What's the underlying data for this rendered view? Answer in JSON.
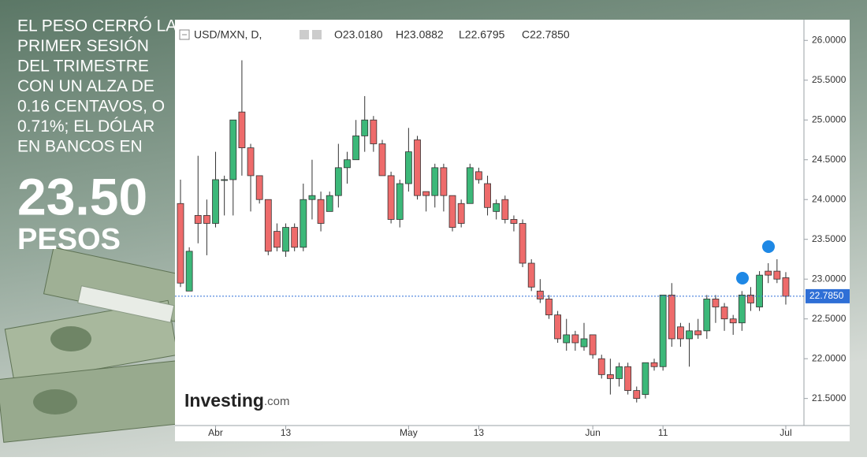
{
  "chart_data": {
    "type": "candlestick",
    "headline": [
      "EL PESO CERRÓ LA",
      "PRIMER SESIÓN",
      "DEL TRIMESTRE",
      "CON UN ALZA DE",
      "0.16 CENTAVOS, O",
      "0.71%; EL DÓLAR",
      "EN BANCOS EN"
    ],
    "big_number": "23.50",
    "big_unit": "PESOS",
    "symbol": "USD/MXN, D,",
    "header_values": [
      "O23.0180",
      "H23.0882",
      "L22.6795",
      "C22.7850"
    ],
    "logo": [
      "Investing",
      ".com"
    ],
    "categories": [
      null,
      null,
      null,
      null,
      "Abr",
      null,
      null,
      null,
      null,
      null,
      null,
      null,
      "13",
      null,
      null,
      null,
      null,
      null,
      null,
      null,
      null,
      null,
      null,
      null,
      null,
      null,
      "May",
      null,
      null,
      null,
      null,
      null,
      null,
      null,
      "13",
      null,
      null,
      null,
      null,
      null,
      null,
      null,
      null,
      null,
      null,
      null,
      null,
      "Jun",
      null,
      null,
      null,
      null,
      null,
      null,
      null,
      "11",
      null,
      null,
      null,
      null,
      null,
      null,
      null,
      null,
      null,
      null,
      null,
      null,
      null,
      "Jul"
    ],
    "open": [
      23.95,
      22.85,
      23.8,
      23.8,
      23.7,
      24.25,
      24.25,
      25.1,
      24.65,
      24.3,
      24.0,
      23.6,
      23.35,
      23.65,
      23.4,
      24.0,
      24.0,
      23.85,
      24.05,
      24.4,
      24.5,
      24.8,
      25.0,
      24.7,
      24.3,
      23.75,
      24.2,
      24.75,
      24.1,
      24.05,
      24.4,
      24.05,
      23.95,
      23.95,
      24.35,
      24.2,
      23.85,
      24.0,
      23.75,
      23.7,
      23.2,
      22.85,
      22.75,
      22.55,
      22.2,
      22.3,
      22.15,
      22.3,
      22.0,
      21.8,
      21.75,
      21.9,
      21.6,
      21.55,
      21.95,
      21.9,
      22.8,
      22.4,
      22.25,
      22.35,
      22.35,
      22.75,
      22.65,
      22.5,
      22.45,
      22.8,
      22.65,
      23.1,
      23.1,
      23.018
    ],
    "high": [
      24.25,
      23.4,
      24.55,
      24.0,
      24.6,
      24.3,
      25.0,
      25.75,
      24.7,
      24.3,
      24.0,
      23.7,
      23.7,
      23.7,
      24.2,
      24.5,
      24.1,
      24.1,
      24.7,
      24.6,
      25.0,
      25.3,
      25.05,
      24.75,
      24.35,
      24.25,
      24.9,
      24.8,
      24.1,
      24.45,
      24.45,
      24.05,
      24.0,
      24.45,
      24.4,
      24.3,
      24.0,
      24.05,
      23.8,
      23.75,
      23.25,
      23.0,
      22.8,
      22.6,
      22.5,
      22.35,
      22.45,
      22.3,
      22.05,
      22.0,
      21.95,
      21.95,
      21.65,
      21.95,
      22.0,
      22.8,
      22.95,
      22.45,
      22.45,
      22.5,
      22.8,
      22.8,
      22.7,
      22.55,
      22.85,
      22.9,
      23.1,
      23.2,
      23.25,
      23.088
    ],
    "low": [
      22.9,
      22.85,
      23.45,
      23.3,
      23.65,
      23.8,
      23.8,
      24.3,
      23.85,
      23.95,
      23.3,
      23.35,
      23.28,
      23.35,
      23.35,
      23.75,
      23.6,
      23.85,
      23.9,
      24.2,
      24.5,
      24.6,
      24.6,
      24.3,
      23.7,
      23.65,
      24.1,
      24.0,
      23.85,
      23.9,
      23.85,
      23.6,
      23.65,
      23.95,
      24.2,
      23.8,
      23.75,
      23.7,
      23.6,
      23.15,
      22.85,
      22.7,
      22.5,
      22.2,
      22.1,
      22.1,
      22.1,
      22.0,
      21.75,
      21.55,
      21.65,
      21.55,
      21.45,
      21.5,
      21.85,
      21.85,
      22.15,
      22.15,
      21.9,
      22.25,
      22.25,
      22.45,
      22.35,
      22.3,
      22.35,
      22.6,
      22.6,
      22.95,
      22.95,
      22.68
    ],
    "close": [
      22.95,
      23.35,
      23.7,
      23.7,
      24.25,
      24.25,
      25.0,
      24.65,
      24.3,
      24.0,
      23.35,
      23.4,
      23.65,
      23.4,
      24.0,
      24.05,
      23.7,
      24.05,
      24.4,
      24.5,
      24.8,
      25.0,
      24.7,
      24.3,
      23.75,
      24.2,
      24.6,
      24.05,
      24.05,
      24.4,
      24.05,
      23.65,
      23.7,
      24.4,
      24.25,
      23.9,
      23.95,
      23.75,
      23.7,
      23.2,
      22.9,
      22.75,
      22.55,
      22.25,
      22.3,
      22.2,
      22.25,
      22.05,
      21.8,
      21.75,
      21.9,
      21.6,
      21.5,
      21.95,
      21.9,
      22.8,
      22.25,
      22.25,
      22.35,
      22.3,
      22.75,
      22.65,
      22.5,
      22.45,
      22.8,
      22.7,
      23.05,
      23.05,
      23.0,
      22.785
    ],
    "up_color": "#3cb879",
    "down_color": "#ee6b6b",
    "last_price": {
      "value": 22.785,
      "label": "22.7850"
    },
    "ylim": [
      21.16,
      26.26
    ],
    "yticks": [
      {
        "value": 21.5,
        "label": "21.5000"
      },
      {
        "value": 22,
        "label": "22.0000"
      },
      {
        "value": 22.5,
        "label": "22.5000"
      },
      {
        "value": 23,
        "label": "23.0000"
      },
      {
        "value": 23.5,
        "label": "23.5000"
      },
      {
        "value": 24,
        "label": "24.0000"
      },
      {
        "value": 24.5,
        "label": "24.5000"
      },
      {
        "value": 25,
        "label": "25.0000"
      },
      {
        "value": 25.5,
        "label": "25.5000"
      },
      {
        "value": 26,
        "label": "26.0000"
      }
    ]
  }
}
